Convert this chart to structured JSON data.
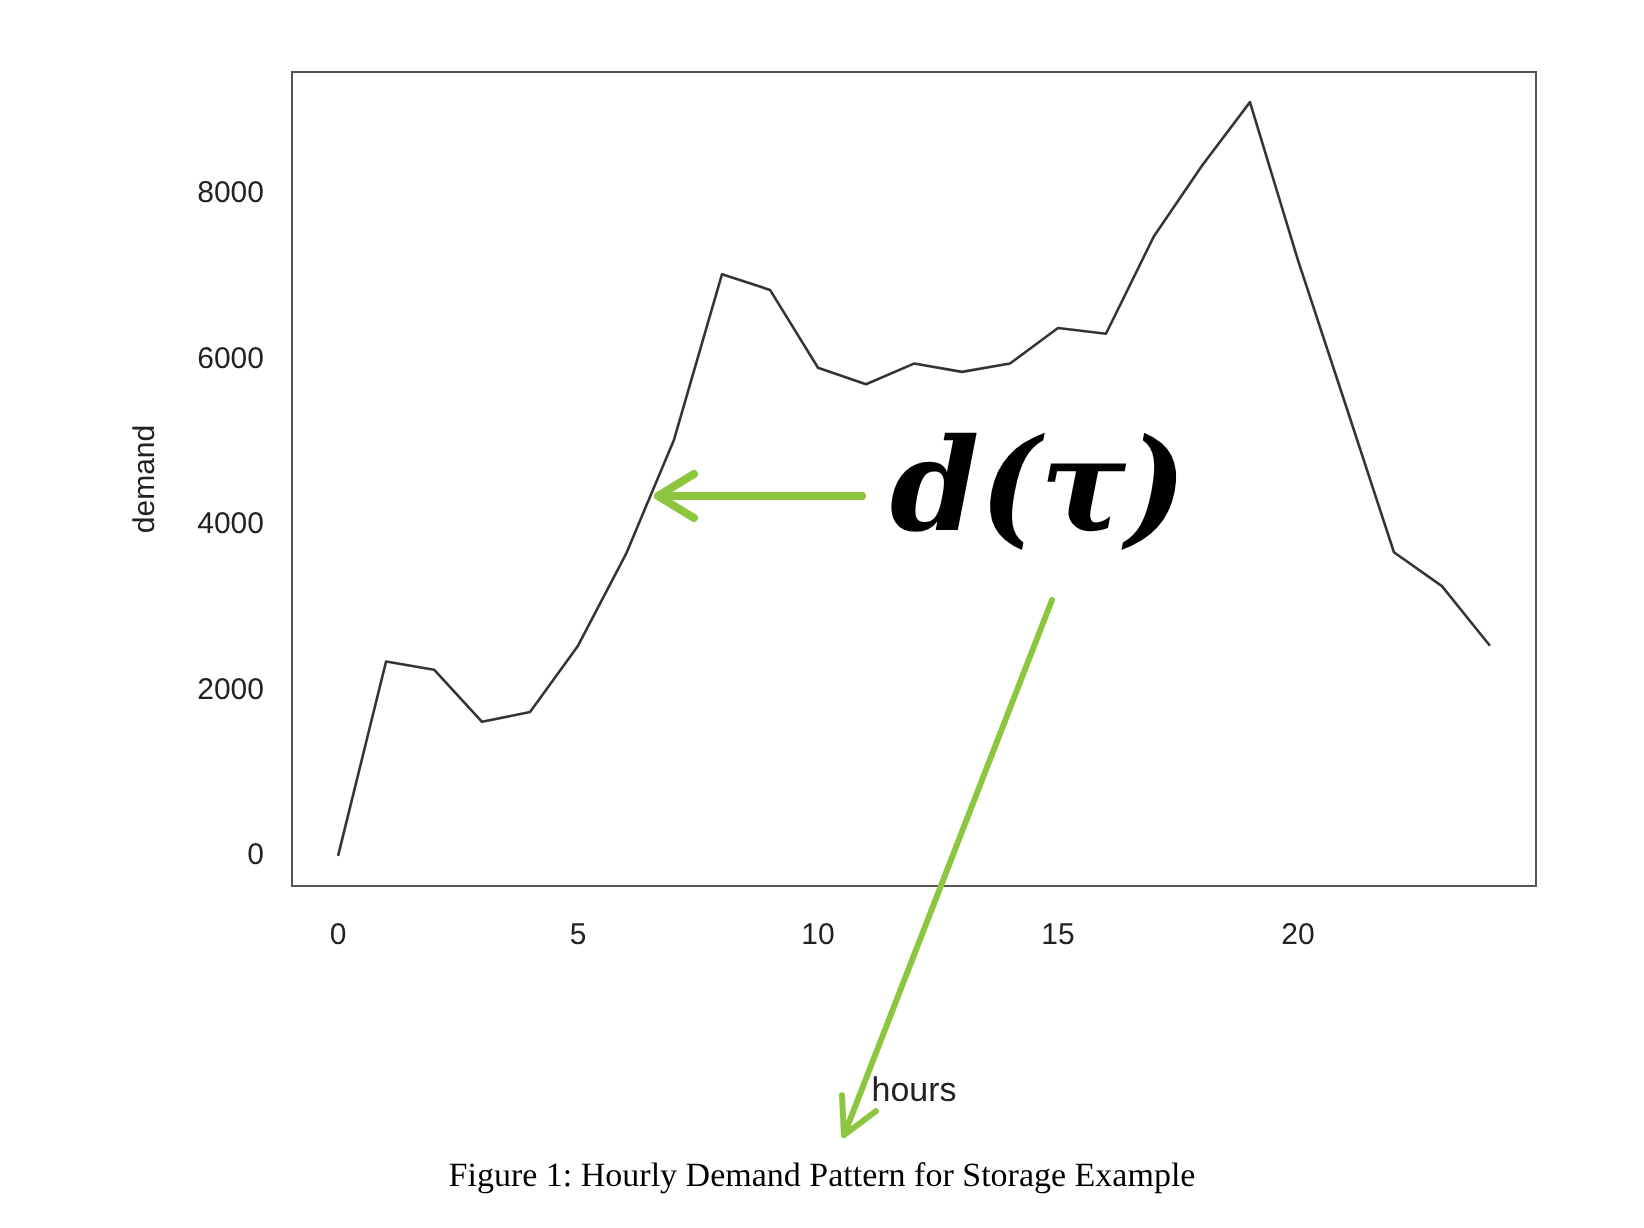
{
  "chart_data": {
    "type": "line",
    "xlabel": "hours",
    "ylabel": "demand",
    "x": [
      0,
      1,
      2,
      3,
      4,
      5,
      6,
      7,
      8,
      9,
      10,
      11,
      12,
      13,
      14,
      15,
      16,
      17,
      18,
      19,
      20,
      21,
      22,
      23,
      24
    ],
    "series": [
      {
        "color": "#333333",
        "values": [
          0,
          2350,
          2250,
          1620,
          1740,
          2540,
          3650,
          5030,
          7030,
          6840,
          5900,
          5700,
          5950,
          5850,
          5950,
          6380,
          6310,
          7490,
          8340,
          9110,
          7200,
          5440,
          3670,
          3260,
          2540
        ]
      }
    ],
    "xlim": [
      -0.96,
      24.96
    ],
    "ylim": [
      -364,
      9474
    ],
    "xticks": [
      0,
      5,
      10,
      15,
      20
    ],
    "yticks": [
      0,
      2000,
      4000,
      6000,
      8000
    ],
    "grid": false,
    "legend": false,
    "marker": "none",
    "line_style": "solid",
    "annotations": [
      {
        "text": "d(τ)",
        "x": 6.5,
        "y": 4340
      },
      "Figure 1: Hourly Demand Pattern for Storage Example"
    ]
  }
}
